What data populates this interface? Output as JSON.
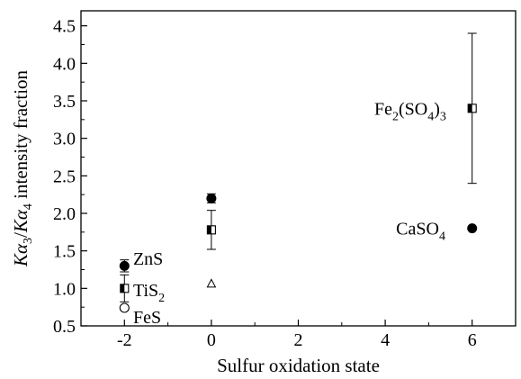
{
  "chart_data": {
    "type": "scatter",
    "xlabel": "Sulfur oxidation state",
    "ylabel": {
      "k1": "K",
      "a1": "α",
      "s1": "3",
      "slash": "/",
      "k2": "K",
      "a2": "α",
      "s2": "4",
      "rest": " intensity fraction"
    },
    "xlim": [
      -3,
      7
    ],
    "ylim": [
      0.5,
      4.7
    ],
    "x_ticks": [
      "-2",
      "0",
      "2",
      "4",
      "6"
    ],
    "x_tick_values": [
      -2,
      0,
      2,
      4,
      6
    ],
    "y_ticks": [
      "0.5",
      "1.0",
      "1.5",
      "2.0",
      "2.5",
      "3.0",
      "3.5",
      "4.0",
      "4.5"
    ],
    "y_tick_values": [
      0.5,
      1.0,
      1.5,
      2.0,
      2.5,
      3.0,
      3.5,
      4.0,
      4.5
    ],
    "grid": false,
    "legend": "none",
    "series": [
      {
        "marker": "filled-circle",
        "points": [
          {
            "x": -2,
            "y": 1.3,
            "err": 0.08
          },
          {
            "x": 0,
            "y": 2.2,
            "err": 0.06
          },
          {
            "x": 6,
            "y": 1.8,
            "err": 0
          }
        ]
      },
      {
        "marker": "half-filled-square",
        "points": [
          {
            "x": -2,
            "y": 1.0,
            "err": 0.18
          },
          {
            "x": 0,
            "y": 1.78,
            "err": 0.26
          },
          {
            "x": 6,
            "y": 3.4,
            "err": 1.0
          }
        ]
      },
      {
        "marker": "open-circle",
        "points": [
          {
            "x": -2,
            "y": 0.74,
            "err": 0
          }
        ]
      },
      {
        "marker": "open-triangle",
        "points": [
          {
            "x": 0,
            "y": 1.06,
            "err": 0
          }
        ]
      }
    ],
    "annotations": [
      {
        "main": "ZnS",
        "x": -1.8,
        "y": 1.4
      },
      {
        "main": "TiS",
        "sub": "2",
        "x": -1.8,
        "y": 0.98
      },
      {
        "main": "FeS",
        "x": -1.8,
        "y": 0.62
      },
      {
        "main": "Fe",
        "sub": "2",
        "main2": "(SO",
        "sub2": "4",
        "main3": ")",
        "sub3": "3",
        "x": 3.75,
        "y": 3.4
      },
      {
        "main": "CaSO",
        "sub": "4",
        "x": 4.25,
        "y": 1.8
      }
    ]
  }
}
